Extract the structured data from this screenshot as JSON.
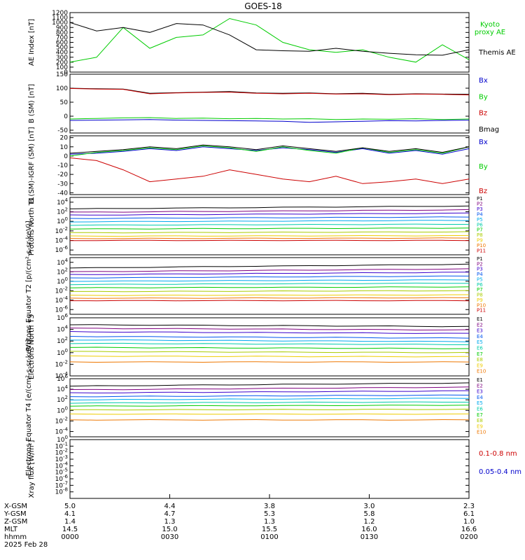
{
  "title": "GOES-18",
  "colors": {
    "black": "#000000",
    "red": "#cc0000",
    "green": "#00cc00",
    "blue": "#0000cc",
    "p": [
      "#000000",
      "#7f007f",
      "#3a00cc",
      "#0055ee",
      "#00aaee",
      "#00ccaa",
      "#00cc00",
      "#aacc00",
      "#eecc00",
      "#ee7700",
      "#cc0000"
    ]
  },
  "chart_data": [
    {
      "id": "ae",
      "type": "line",
      "ylabel": "AE Index [nT]",
      "ylim": [
        0,
        1200
      ],
      "yscale": "linear",
      "yticks": [
        "0",
        "100",
        "200",
        "300",
        "400",
        "500",
        "600",
        "700",
        "800",
        "900",
        "1000",
        "1100",
        "1200"
      ],
      "ytick_values": [
        0,
        100,
        200,
        300,
        400,
        500,
        600,
        700,
        800,
        900,
        1000,
        1100,
        1200
      ],
      "legend": [
        "Kyoto proxy AE",
        "Themis AE"
      ],
      "legend_lines": [
        [
          "Kyoto",
          "proxy AE"
        ],
        [
          "Themis AE"
        ]
      ],
      "x": [
        0,
        8,
        16,
        24,
        32,
        40,
        48,
        56,
        64,
        72,
        80,
        88,
        96,
        104,
        112,
        120
      ],
      "series": [
        {
          "name": "Kyoto proxy AE",
          "color": "green",
          "values": [
            200,
            300,
            900,
            480,
            700,
            750,
            1080,
            950,
            600,
            450,
            400,
            450,
            300,
            200,
            550,
            250
          ]
        },
        {
          "name": "Themis AE",
          "color": "black",
          "values": [
            1000,
            830,
            900,
            800,
            980,
            950,
            750,
            450,
            430,
            420,
            480,
            420,
            380,
            350,
            340,
            450
          ]
        }
      ]
    },
    {
      "id": "b",
      "type": "line",
      "ylabel": "B (SM) [nT]",
      "ylim": [
        -60,
        150
      ],
      "yscale": "linear",
      "yticks": [
        "-50",
        "0",
        "50",
        "100",
        "150"
      ],
      "ytick_values": [
        -50,
        0,
        50,
        100,
        150
      ],
      "legend": [
        "Bx",
        "By",
        "Bz",
        "Bmag"
      ],
      "legend_lines": [
        [
          "Bx"
        ],
        [
          "By"
        ],
        [
          "Bz"
        ],
        [
          "Bmag"
        ]
      ],
      "x": [
        0,
        8,
        16,
        24,
        32,
        40,
        48,
        56,
        64,
        72,
        80,
        88,
        96,
        104,
        112,
        120
      ],
      "series": [
        {
          "name": "Bmag",
          "color": "black",
          "values": [
            100,
            98,
            97,
            82,
            84,
            86,
            88,
            83,
            82,
            83,
            80,
            82,
            78,
            80,
            79,
            78
          ]
        },
        {
          "name": "Bz",
          "color": "red",
          "values": [
            99,
            97,
            96,
            80,
            83,
            85,
            86,
            82,
            80,
            82,
            79,
            80,
            77,
            79,
            78,
            76
          ]
        },
        {
          "name": "By",
          "color": "green",
          "values": [
            -10,
            -8,
            -6,
            -5,
            -8,
            -7,
            -9,
            -8,
            -10,
            -9,
            -12,
            -10,
            -11,
            -9,
            -12,
            -10
          ]
        },
        {
          "name": "Bx",
          "color": "blue",
          "values": [
            -15,
            -14,
            -13,
            -12,
            -14,
            -15,
            -16,
            -17,
            -18,
            -22,
            -20,
            -18,
            -16,
            -17,
            -15,
            -14
          ]
        }
      ]
    },
    {
      "id": "db",
      "type": "line",
      "ylabel": "B (SM)-IGRF (SM) [nT]",
      "ylim": [
        -42,
        22
      ],
      "yscale": "linear",
      "yticks": [
        "-40",
        "-30",
        "-20",
        "-10",
        "0",
        "10",
        "20"
      ],
      "ytick_values": [
        -40,
        -30,
        -20,
        -10,
        0,
        10,
        20
      ],
      "legend": [
        "Bx",
        "By",
        "Bz"
      ],
      "legend_lines": [
        [
          "Bx"
        ],
        [
          "By"
        ],
        [
          "Bz"
        ]
      ],
      "x": [
        0,
        8,
        16,
        24,
        32,
        40,
        48,
        56,
        64,
        72,
        80,
        88,
        96,
        104,
        112,
        120
      ],
      "series": [
        {
          "name": "Bx",
          "color": "blue",
          "values": [
            2,
            3,
            5,
            8,
            6,
            10,
            8,
            6,
            9,
            7,
            4,
            8,
            3,
            6,
            2,
            8
          ]
        },
        {
          "name": "By",
          "color": "green",
          "values": [
            0,
            4,
            6,
            9,
            7,
            11,
            9,
            5,
            10,
            6,
            3,
            9,
            4,
            7,
            3,
            10
          ]
        },
        {
          "name": "Bz",
          "color": "red",
          "values": [
            -2,
            -5,
            -15,
            -28,
            -25,
            -22,
            -15,
            -20,
            -25,
            -28,
            -22,
            -30,
            -28,
            -25,
            -30,
            -25
          ]
        },
        {
          "name": "Btot",
          "color": "black",
          "values": [
            3,
            5,
            7,
            10,
            8,
            12,
            10,
            7,
            11,
            8,
            5,
            9,
            5,
            8,
            4,
            10
          ]
        }
      ]
    },
    {
      "id": "pn",
      "type": "line",
      "ylabel": "Protons North T1",
      "yscale": "log",
      "ylim_exp": [
        -7,
        5
      ],
      "yticks": [
        "10^4",
        "10^2",
        "10^0",
        "10^-2",
        "10^-4",
        "10^-6"
      ],
      "ytick_values": [
        4,
        2,
        0,
        -2,
        -4,
        -6
      ],
      "legend": [
        "P1",
        "P2",
        "P3",
        "P4",
        "P5",
        "P6",
        "P7",
        "P8",
        "P9",
        "P10",
        "P11"
      ],
      "x": [
        0,
        8,
        16,
        24,
        32,
        40,
        48,
        56,
        64,
        72,
        80,
        88,
        96,
        104,
        112,
        120
      ],
      "channel_levels_log10": [
        2.6,
        1.9,
        1.3,
        0.6,
        -0.1,
        -0.8,
        -1.6,
        -2.4,
        -3.1,
        -3.6,
        -4.0
      ],
      "channel_slopes_log10": [
        0.6,
        0.5,
        0.4,
        0.3,
        0.3,
        0.2,
        0.2,
        0.2,
        0.1,
        0.1,
        0.0
      ]
    },
    {
      "id": "pe",
      "type": "line",
      "ylabel": "Protons Equator T2 [p/(cm²-s-sr-keV)]",
      "yscale": "log",
      "ylim_exp": [
        -7,
        5
      ],
      "yticks": [
        "10^4",
        "10^2",
        "10^0",
        "10^-2",
        "10^-4",
        "10^-6"
      ],
      "ytick_values": [
        4,
        2,
        0,
        -2,
        -4,
        -6
      ],
      "legend": [
        "P1",
        "P2",
        "P3",
        "P4",
        "P5",
        "P6",
        "P7",
        "P8",
        "P9",
        "P10",
        "P11"
      ],
      "x": [
        0,
        8,
        16,
        24,
        32,
        40,
        48,
        56,
        64,
        72,
        80,
        88,
        96,
        104,
        112,
        120
      ],
      "channel_levels_log10": [
        2.8,
        2.0,
        1.4,
        0.7,
        0.0,
        -0.7,
        -1.4,
        -2.2,
        -3.0,
        -3.6,
        -4.1
      ],
      "channel_slopes_log10": [
        0.8,
        0.6,
        0.5,
        0.4,
        0.3,
        0.3,
        0.2,
        0.2,
        0.1,
        0.1,
        0.0
      ]
    },
    {
      "id": "en",
      "type": "line",
      "ylabel": "Electrons North T3",
      "yscale": "log",
      "ylim_exp": [
        -4,
        6
      ],
      "yticks": [
        "10^6",
        "10^4",
        "10^2",
        "10^0",
        "10^-2",
        "10^-4"
      ],
      "ytick_values": [
        6,
        4,
        2,
        0,
        -2,
        -4
      ],
      "legend": [
        "E1",
        "E2",
        "E3",
        "E4",
        "E5",
        "E6",
        "E7",
        "E8",
        "E9",
        "E10"
      ],
      "x": [
        0,
        8,
        16,
        24,
        32,
        40,
        48,
        56,
        64,
        72,
        80,
        88,
        96,
        104,
        112,
        120
      ],
      "channel_levels_log10": [
        4.8,
        4.2,
        3.6,
        2.8,
        2.2,
        1.6,
        0.9,
        0.2,
        -0.6,
        -1.6
      ],
      "channel_slopes_log10": [
        -0.3,
        -0.3,
        -0.3,
        -0.3,
        -0.3,
        -0.2,
        -0.2,
        -0.2,
        -0.1,
        0.0
      ]
    },
    {
      "id": "ee",
      "type": "line",
      "ylabel": "Electrons Equator T4 [e/(cm²-s-sr-keV)]",
      "yscale": "log",
      "ylim_exp": [
        -5,
        6
      ],
      "yticks": [
        "10^6",
        "10^4",
        "10^2",
        "10^0",
        "10^-2",
        "10^-4"
      ],
      "ytick_values": [
        6,
        4,
        2,
        0,
        -2,
        -4
      ],
      "legend": [
        "E1",
        "E2",
        "E3",
        "E4",
        "E5",
        "E6",
        "E7",
        "E8",
        "E9",
        "E10"
      ],
      "x": [
        0,
        8,
        16,
        24,
        32,
        40,
        48,
        56,
        64,
        72,
        80,
        88,
        96,
        104,
        112,
        120
      ],
      "channel_levels_log10": [
        4.6,
        3.9,
        3.3,
        2.6,
        2.0,
        1.4,
        0.8,
        0.1,
        -0.7,
        -1.8
      ],
      "channel_slopes_log10": [
        0.6,
        0.5,
        0.4,
        0.3,
        0.3,
        0.2,
        0.2,
        0.1,
        0.0,
        0.0
      ]
    },
    {
      "id": "xray",
      "type": "line",
      "ylabel": "Xray flux [W/m²]",
      "yscale": "log",
      "ylim_exp": [
        -9,
        0
      ],
      "yticks": [
        "10^0",
        "10^-1",
        "10^-2",
        "10^-3",
        "10^-4",
        "10^-5",
        "10^-6",
        "10^-7",
        "10^-8"
      ],
      "ytick_values": [
        0,
        -1,
        -2,
        -3,
        -4,
        -5,
        -6,
        -7,
        -8
      ],
      "legend": [
        "0.1-0.8 nm",
        "0.05-0.4 nm"
      ],
      "series": []
    }
  ],
  "xaxis": {
    "row_labels": [
      "X-GSM",
      "Y-GSM",
      "Z-GSM",
      "MLT",
      "hhmm",
      "2025 Feb 28"
    ],
    "x_positions": [
      0,
      30,
      60,
      90,
      120
    ],
    "columns": [
      [
        "5.0",
        "4.1",
        "1.4",
        "14.5",
        "0000"
      ],
      [
        "4.4",
        "4.7",
        "1.3",
        "15.0",
        "0030"
      ],
      [
        "3.8",
        "5.3",
        "1.3",
        "15.5",
        "0100"
      ],
      [
        "3.0",
        "5.8",
        "1.2",
        "16.0",
        "0130"
      ],
      [
        "2.3",
        "6.1",
        "1.0",
        "16.6",
        "0200"
      ]
    ]
  }
}
